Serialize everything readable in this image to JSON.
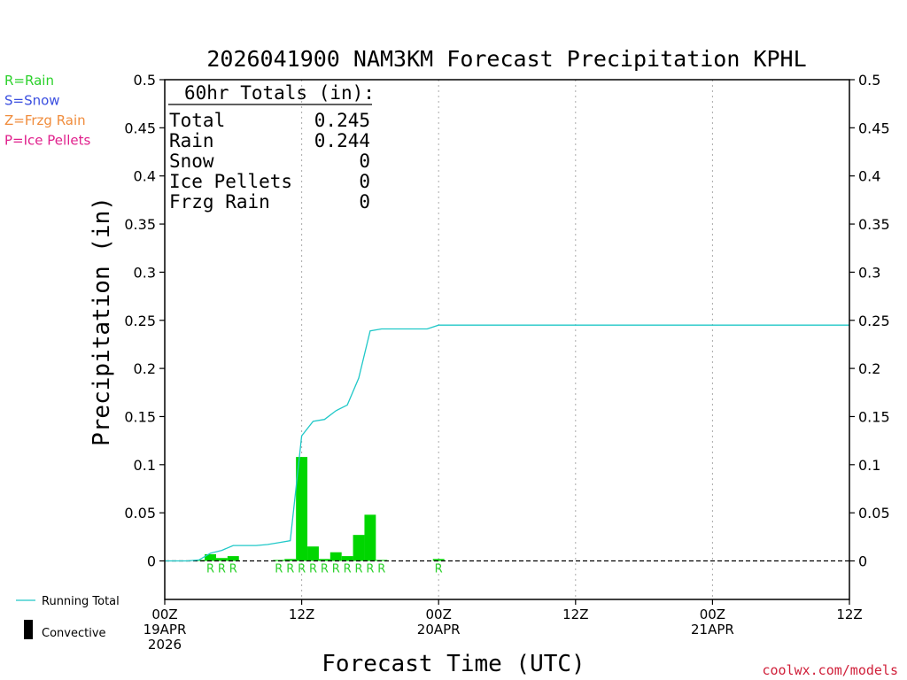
{
  "chart_data": {
    "type": "bar",
    "title": "2026041900 NAM3KM Forecast Precipitation KPHL",
    "xlabel": "Forecast Time (UTC)",
    "ylabel": "Precipitation (in)",
    "ylim": [
      -0.04,
      0.5
    ],
    "xlim": [
      0,
      60
    ],
    "yticks": [
      0,
      0.05,
      0.1,
      0.15,
      0.2,
      0.25,
      0.3,
      0.35,
      0.4,
      0.45,
      0.5
    ],
    "ytick_labels": [
      "0",
      "0.05",
      "0.1",
      "0.15",
      "0.2",
      "0.25",
      "0.3",
      "0.35",
      "0.4",
      "0.45",
      "0.5"
    ],
    "xticks": [
      {
        "hour": 0,
        "lines": [
          "00Z",
          "19APR",
          "2026"
        ]
      },
      {
        "hour": 12,
        "lines": [
          "12Z"
        ]
      },
      {
        "hour": 24,
        "lines": [
          "00Z",
          "20APR"
        ]
      },
      {
        "hour": 36,
        "lines": [
          "12Z"
        ]
      },
      {
        "hour": 48,
        "lines": [
          "00Z",
          "21APR"
        ]
      },
      {
        "hour": 60,
        "lines": [
          "12Z"
        ]
      }
    ],
    "grid_hours": [
      12,
      24,
      36,
      48
    ],
    "bars": [
      {
        "hour": 3,
        "value": 0.001
      },
      {
        "hour": 4,
        "value": 0.007
      },
      {
        "hour": 5,
        "value": 0.003
      },
      {
        "hour": 6,
        "value": 0.005
      },
      {
        "hour": 10,
        "value": 0.001
      },
      {
        "hour": 11,
        "value": 0.002
      },
      {
        "hour": 12,
        "value": 0.108
      },
      {
        "hour": 13,
        "value": 0.015
      },
      {
        "hour": 14,
        "value": 0.002
      },
      {
        "hour": 15,
        "value": 0.009
      },
      {
        "hour": 16,
        "value": 0.005
      },
      {
        "hour": 17,
        "value": 0.027
      },
      {
        "hour": 18,
        "value": 0.048
      },
      {
        "hour": 19,
        "value": 0.001
      },
      {
        "hour": 24,
        "value": 0.002
      }
    ],
    "running_total": {
      "name": "Running Total",
      "x": [
        0,
        1,
        2,
        3,
        4,
        5,
        6,
        7,
        8,
        9,
        10,
        11,
        12,
        13,
        14,
        15,
        16,
        17,
        18,
        19,
        20,
        21,
        22,
        23,
        24,
        60
      ],
      "y": [
        0,
        0,
        0,
        0.001,
        0.008,
        0.011,
        0.016,
        0.016,
        0.016,
        0.017,
        0.019,
        0.021,
        0.13,
        0.145,
        0.147,
        0.156,
        0.162,
        0.19,
        0.239,
        0.241,
        0.241,
        0.241,
        0.241,
        0.241,
        0.245,
        0.245
      ]
    },
    "ptype_marks": [
      {
        "hour": 4,
        "label": "R"
      },
      {
        "hour": 5,
        "label": "R"
      },
      {
        "hour": 6,
        "label": "R"
      },
      {
        "hour": 10,
        "label": "R"
      },
      {
        "hour": 11,
        "label": "R"
      },
      {
        "hour": 12,
        "label": "R"
      },
      {
        "hour": 13,
        "label": "R"
      },
      {
        "hour": 14,
        "label": "R"
      },
      {
        "hour": 15,
        "label": "R"
      },
      {
        "hour": 16,
        "label": "R"
      },
      {
        "hour": 17,
        "label": "R"
      },
      {
        "hour": 18,
        "label": "R"
      },
      {
        "hour": 19,
        "label": "R"
      },
      {
        "hour": 24,
        "label": "R"
      }
    ],
    "totals_box": {
      "heading": "60hr Totals (in):",
      "rows": [
        {
          "label": "Total",
          "value": "0.245"
        },
        {
          "label": "Rain",
          "value": "0.244"
        },
        {
          "label": "Snow",
          "value": "0"
        },
        {
          "label": "Ice Pellets",
          "value": "0"
        },
        {
          "label": "Frzg Rain",
          "value": "0"
        }
      ]
    },
    "ptype_legend": [
      {
        "text": "R=Rain",
        "color": "#2bd12b"
      },
      {
        "text": "S=Snow",
        "color": "#3b4fe0"
      },
      {
        "text": "Z=Frzg Rain",
        "color": "#f08c3c"
      },
      {
        "text": "P=Ice Pellets",
        "color": "#e0208c"
      }
    ],
    "series_legend": {
      "running_total": "Running Total",
      "convective": "Convective"
    },
    "colors": {
      "bar": "#00d600",
      "line": "#20c8c8",
      "grid": "#aaaaaa"
    },
    "credit": "coolwx.com/models"
  }
}
